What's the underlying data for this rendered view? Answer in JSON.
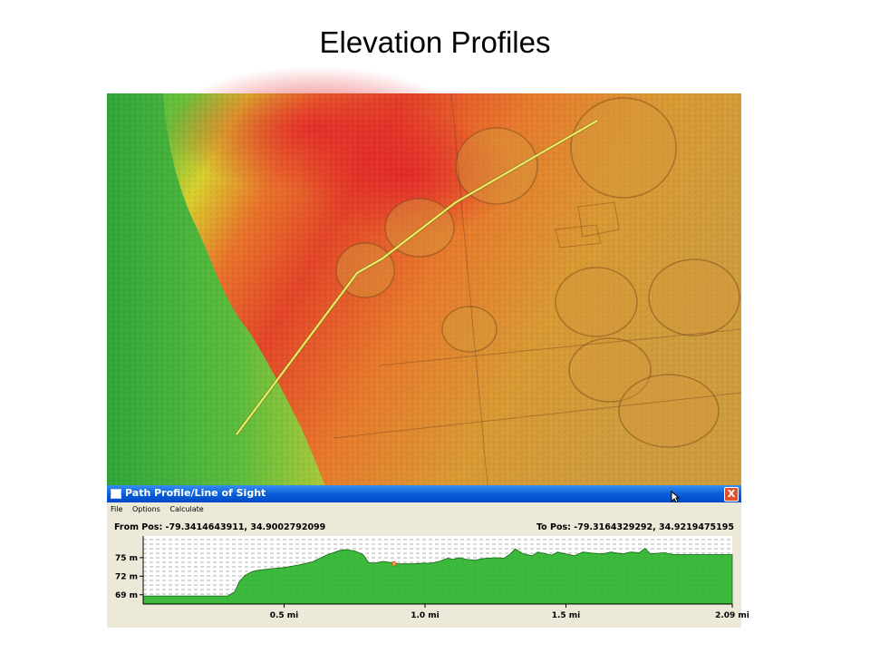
{
  "slide": {
    "title": "Elevation Profiles"
  },
  "window": {
    "title": "Path Profile/Line of Sight",
    "close_glyph": "X",
    "icons": [
      "window-icon",
      "close-icon",
      "cursor-icon"
    ]
  },
  "menu": [
    "File",
    "Options",
    "Calculate"
  ],
  "positions": {
    "from": "From Pos: -79.3414643911, 34.9002792099",
    "to": "To Pos: -79.3164329292, 34.9219475195"
  },
  "chart_data": {
    "type": "area",
    "y_tick_labels": [
      "75 m",
      "72 m",
      "69 m"
    ],
    "y_ticks": [
      75,
      72,
      69
    ],
    "x_tick_labels": [
      "0.5 mi",
      "1.0 mi",
      "1.5 mi",
      "2.09 mi"
    ],
    "x_ticks": [
      0.5,
      1.0,
      1.5,
      2.09
    ],
    "xlim": [
      0,
      2.09
    ],
    "ylim": [
      67.5,
      78.5
    ],
    "fill_color": "#22b022",
    "grid": "dashed horizontal",
    "series": [
      {
        "x": [
          0,
          0.15,
          0.3,
          0.325,
          0.34,
          0.36,
          0.38,
          0.4,
          0.45,
          0.5,
          0.55,
          0.6,
          0.65,
          0.7,
          0.72,
          0.75,
          0.78,
          0.8,
          0.82,
          0.85,
          0.88,
          0.9,
          0.93,
          0.96,
          0.99,
          1.02,
          1.05,
          1.08,
          1.1,
          1.12,
          1.15,
          1.18,
          1.2,
          1.22,
          1.25,
          1.28,
          1.3,
          1.32,
          1.35,
          1.38,
          1.4,
          1.42,
          1.45,
          1.47,
          1.5,
          1.53,
          1.56,
          1.6,
          1.63,
          1.66,
          1.7,
          1.73,
          1.76,
          1.78,
          1.8,
          1.82,
          1.85,
          1.88,
          1.92,
          1.96,
          2.0,
          2.05,
          2.09
        ],
        "y": [
          68.8,
          68.8,
          68.8,
          69.5,
          71.0,
          72.1,
          72.6,
          72.9,
          73.2,
          73.4,
          73.8,
          74.3,
          75.4,
          76.2,
          76.3,
          76.1,
          75.5,
          74.2,
          74.1,
          74.4,
          74.2,
          74.0,
          74.0,
          74.0,
          74.1,
          74.1,
          74.4,
          74.9,
          74.7,
          75.0,
          74.7,
          74.6,
          74.8,
          74.9,
          75.0,
          74.9,
          75.5,
          76.4,
          75.6,
          75.3,
          75.9,
          75.7,
          75.4,
          75.9,
          75.6,
          75.3,
          75.9,
          75.7,
          75.6,
          75.9,
          75.6,
          75.9,
          75.8,
          76.5,
          75.6,
          75.7,
          75.8,
          75.5,
          75.5,
          75.5,
          75.5,
          75.5,
          75.5
        ]
      }
    ],
    "marker": {
      "x": 0.89,
      "y": 74.0,
      "color": "#f0a030"
    }
  }
}
